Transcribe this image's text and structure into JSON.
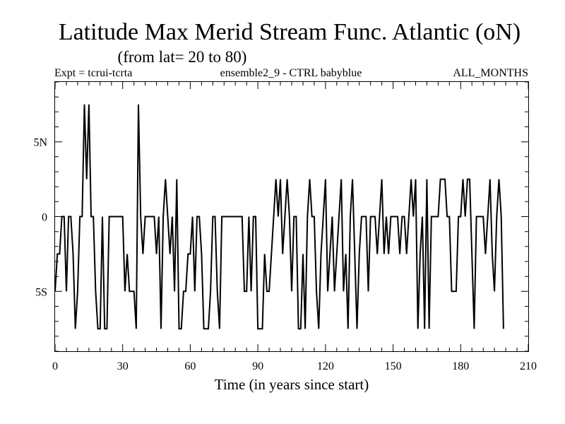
{
  "chart_data": {
    "type": "line",
    "title": "Latitude Max Merid Stream Func. Atlantic (oN)",
    "subtitle": "(from lat= 20 to 80)",
    "header_left": "Expt = tcrui-tcrta",
    "header_center": "ensemble2_9 - CTRL babyblue",
    "header_right": "ALL_MONTHS",
    "xlabel": "Time (in years since start)",
    "ylabel": "",
    "xlim": [
      0,
      210
    ],
    "ylim": [
      -9,
      9
    ],
    "x_ticks": [
      0,
      30,
      60,
      90,
      120,
      150,
      180,
      210
    ],
    "x_tick_labels": [
      "0",
      "30",
      "60",
      "90",
      "120",
      "150",
      "180",
      "210"
    ],
    "y_ticks": [
      5,
      0,
      -5
    ],
    "y_tick_labels": [
      "5N",
      "0",
      "5S"
    ],
    "y_minor_step": 1,
    "x_minor_step": 5,
    "series": [
      {
        "name": "ensemble2_9 - CTRL",
        "color": "#000000",
        "x_start": 0,
        "x_step": 1,
        "values": [
          -5,
          -2.5,
          -2.5,
          0,
          0,
          -5,
          0,
          0,
          -2.5,
          -7.5,
          -5,
          0,
          0,
          7.5,
          2.5,
          7.5,
          0,
          0,
          -5,
          -7.5,
          -7.5,
          0,
          -7.5,
          -7.5,
          0,
          0,
          0,
          0,
          0,
          0,
          0,
          -5,
          -2.5,
          -5,
          -5,
          -5,
          -7.5,
          7.5,
          0,
          -2.5,
          0,
          0,
          0,
          0,
          0,
          -2.5,
          0,
          -7.5,
          0,
          2.5,
          0,
          -2.5,
          0,
          -5,
          2.5,
          -7.5,
          -7.5,
          -5,
          -5,
          -2.5,
          -2.5,
          0,
          -5,
          0,
          0,
          -2.5,
          -7.5,
          -7.5,
          -7.5,
          -5,
          0,
          0,
          -5,
          -7.5,
          0,
          0,
          0,
          0,
          0,
          0,
          0,
          0,
          0,
          0,
          -5,
          -5,
          0,
          -5,
          0,
          0,
          -7.5,
          -7.5,
          -7.5,
          -2.5,
          -5,
          -5,
          -2.5,
          0,
          2.5,
          0,
          2.5,
          -2.5,
          0,
          2.5,
          0,
          -5,
          0,
          0,
          -7.5,
          -7.5,
          -2.5,
          -7.5,
          0,
          2.5,
          0,
          0,
          -5,
          -7.5,
          -2.5,
          0,
          2.5,
          -5,
          -2.5,
          0,
          -5,
          -2.5,
          0,
          2.5,
          -5,
          -2.5,
          -7.5,
          0,
          2.5,
          -2.5,
          -7.5,
          -2.5,
          0,
          0,
          0,
          -5,
          0,
          0,
          0,
          -2.5,
          0,
          2.5,
          -2.5,
          0,
          -2.5,
          0,
          0,
          0,
          0,
          -2.5,
          0,
          0,
          -2.5,
          0,
          2.5,
          0,
          2.5,
          -7.5,
          -2.5,
          0,
          -7.5,
          2.5,
          -7.5,
          0,
          0,
          0,
          0,
          2.5,
          2.5,
          2.5,
          0,
          0,
          -5,
          -5,
          -5,
          0,
          0,
          2.5,
          0,
          2.5,
          2.5,
          -2.5,
          -7.5,
          0,
          0,
          0,
          0,
          -2.5,
          0,
          2.5,
          -2.5,
          -5,
          0,
          2.5,
          0,
          -7.5
        ]
      }
    ]
  }
}
